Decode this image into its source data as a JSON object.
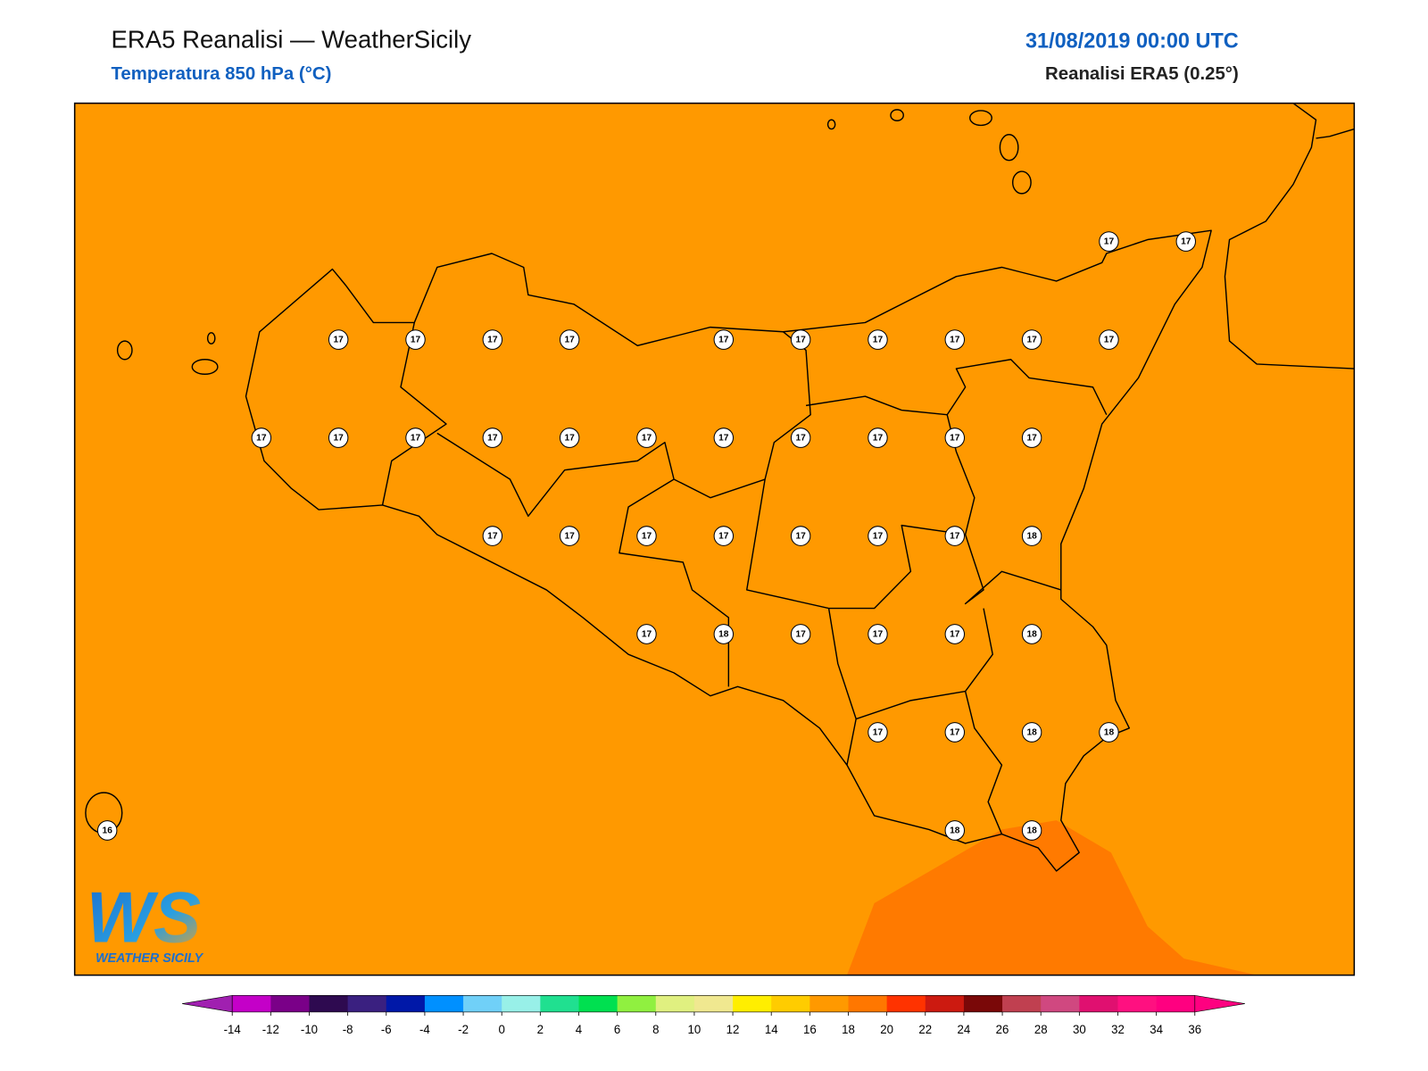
{
  "header": {
    "title": "ERA5 Reanalisi — WeatherSicily",
    "subtitle": "Temperatura 850 hPa (°C)",
    "valid_time": "31/08/2019 00:00 UTC",
    "source": "Reanalisi ERA5 (0.25°)"
  },
  "map": {
    "stations": [
      17,
      17,
      17,
      17,
      17,
      17,
      17,
      17,
      17,
      17,
      17,
      17,
      17,
      17,
      17,
      17,
      17,
      17,
      17,
      17,
      17,
      17,
      17,
      17,
      17,
      17,
      17,
      17,
      17,
      17,
      18,
      17,
      18,
      17,
      17,
      17,
      18,
      17,
      17,
      18,
      18,
      16,
      18,
      18
    ]
  },
  "colorbar": {
    "ticks": [
      -14,
      -12,
      -10,
      -8,
      -6,
      -4,
      -2,
      0,
      2,
      4,
      6,
      8,
      10,
      12,
      14,
      16,
      18,
      20,
      22,
      24,
      26,
      28,
      30,
      32,
      34,
      36
    ],
    "colors": [
      "#c400c8",
      "#7a0088",
      "#2e0a50",
      "#3a2080",
      "#0018a8",
      "#0090ff",
      "#70d0f8",
      "#98f0e8",
      "#20e090",
      "#00e050",
      "#90f040",
      "#e0f080",
      "#f0e890",
      "#ffee00",
      "#ffcc00",
      "#ff9900",
      "#ff7700",
      "#ff3300",
      "#cc1a10",
      "#7a0808",
      "#c04050",
      "#d04880",
      "#e01070",
      "#ff1080",
      "#ff0080"
    ],
    "extend_low_color": "#a020b0",
    "extend_high_color": "#ff0080"
  },
  "logo": {
    "mark": "WS",
    "text": "WEATHER SICILY"
  }
}
